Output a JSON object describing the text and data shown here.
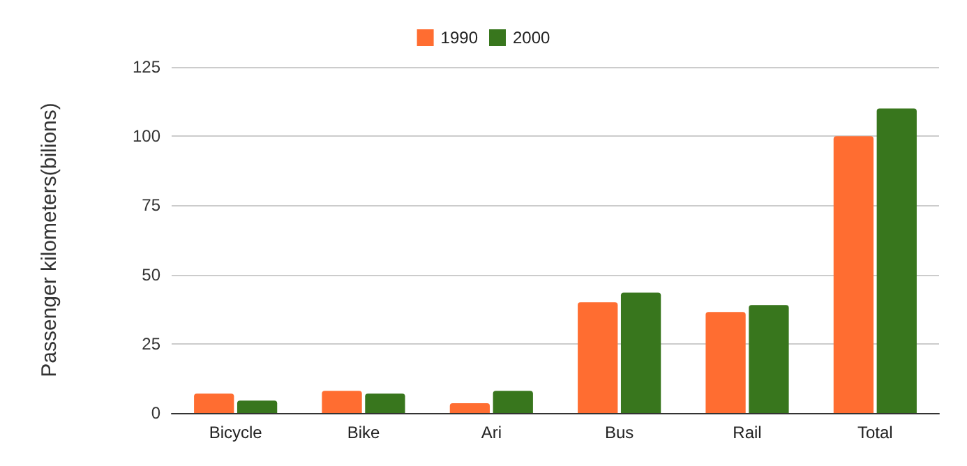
{
  "chart_data": {
    "type": "bar",
    "ylabel": "Passenger kilometers(bilions)",
    "categories": [
      "Bicycle",
      "Bike",
      "Ari",
      "Bus",
      "Rail",
      "Total"
    ],
    "series": [
      {
        "name": "1990",
        "color": "#ff6d31",
        "values": [
          7,
          8,
          3.5,
          40,
          36.5,
          100
        ]
      },
      {
        "name": "2000",
        "color": "#38761d",
        "values": [
          4.5,
          7,
          8,
          43.5,
          39,
          110
        ]
      }
    ],
    "ylim": [
      0,
      125
    ],
    "yticks": [
      0,
      25,
      50,
      75,
      100,
      125
    ],
    "grid": "y",
    "legend": "top"
  }
}
